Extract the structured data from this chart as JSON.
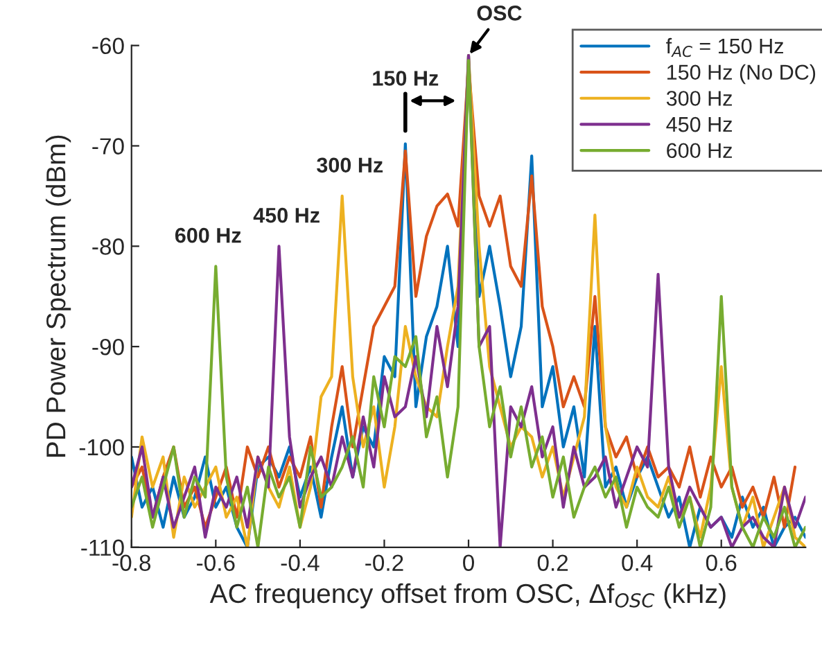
{
  "chart_data": {
    "type": "line",
    "xlabel": "AC frequency offset from OSC, Δf$_{OSC}$ (kHz)",
    "ylabel": "PD Power Spectrum (dBm)",
    "x": [
      -0.8,
      -0.775,
      -0.75,
      -0.725,
      -0.7,
      -0.675,
      -0.65,
      -0.625,
      -0.6,
      -0.575,
      -0.55,
      -0.525,
      -0.5,
      -0.475,
      -0.45,
      -0.425,
      -0.4,
      -0.375,
      -0.35,
      -0.325,
      -0.3,
      -0.275,
      -0.25,
      -0.225,
      -0.2,
      -0.175,
      -0.15,
      -0.125,
      -0.1,
      -0.075,
      -0.05,
      -0.025,
      0,
      0.025,
      0.05,
      0.075,
      0.1,
      0.125,
      0.15,
      0.175,
      0.2,
      0.225,
      0.25,
      0.275,
      0.3,
      0.325,
      0.35,
      0.375,
      0.4,
      0.425,
      0.45,
      0.475,
      0.5,
      0.525,
      0.55,
      0.575,
      0.6,
      0.625,
      0.65,
      0.675,
      0.7,
      0.725,
      0.75,
      0.775,
      0.8
    ],
    "series": [
      {
        "name": "f$_{AC}$ = 150 Hz",
        "color": "#0072bd",
        "values": [
          -101,
          -106,
          -104,
          -108,
          -103,
          -107,
          -105,
          -101,
          -106,
          -104,
          -108,
          -110,
          -102,
          -101,
          -103,
          -100,
          -105,
          -102,
          -107,
          -101,
          -96,
          -103,
          -98,
          -100,
          -91,
          -93,
          -69.8,
          -96,
          -89,
          -86,
          -80,
          -90,
          -61,
          -85,
          -80,
          -86,
          -93,
          -88,
          -71,
          -96,
          -92,
          -100,
          -96,
          -103,
          -88,
          -104,
          -102,
          -106,
          -103,
          -101,
          -104,
          -107,
          -105,
          -110,
          -106,
          -108,
          -107,
          -109,
          -105,
          -108,
          -106,
          -110,
          -108,
          -107,
          -109
        ]
      },
      {
        "name": "150 Hz (No DC)",
        "color": "#d95319",
        "values": [
          -104,
          -102,
          -107,
          -103,
          -100,
          -106,
          -104,
          -108,
          -105,
          -102,
          -107,
          -100,
          -103,
          -100,
          -104,
          -101,
          -103,
          -99,
          -106,
          -98,
          -92,
          -100,
          -94,
          -88,
          -86,
          -84,
          -70.5,
          -85,
          -79,
          -76,
          -74.8,
          -78,
          -62,
          -75,
          -78,
          -75,
          -82,
          -84,
          -73,
          -86,
          -90,
          -96,
          -93,
          -96,
          -85,
          -98,
          -101,
          -99,
          -103,
          -100,
          -103,
          -102,
          -104,
          -100,
          -105,
          -101,
          -104,
          -102,
          -106,
          -104,
          -107,
          -103,
          -108,
          -102,
          null
        ]
      },
      {
        "name": "300 Hz",
        "color": "#edb120",
        "values": [
          -107,
          -99,
          -104,
          -101,
          -109,
          -103,
          -106,
          -104,
          -102,
          -107,
          -105,
          -110,
          -101,
          -104,
          -106,
          -102,
          -108,
          -104,
          -95,
          -93,
          -75,
          -93,
          -100,
          -96,
          -104,
          -98,
          -88,
          -93,
          -96,
          -97,
          -90,
          -84,
          -61,
          -80,
          -92,
          -96,
          -100,
          -98,
          -99,
          -103,
          -100,
          -105,
          -101,
          -97,
          -76.9,
          -98,
          -104,
          -106,
          -102,
          -105,
          -106,
          -103,
          -107,
          -105,
          -109,
          -104,
          -92,
          -104,
          -108,
          -105,
          -110,
          -107,
          -104,
          -109,
          -110
        ]
      },
      {
        "name": "450 Hz",
        "color": "#7e2f8e",
        "values": [
          -104,
          -100,
          -107,
          -103,
          -108,
          -105,
          -102,
          -109,
          -104,
          -106,
          -103,
          -108,
          -101,
          -104,
          -80,
          -99,
          -106,
          -103,
          -101,
          -104,
          -99,
          -103,
          -97,
          -102,
          -93,
          -97,
          -96,
          -91,
          -97,
          -88,
          -94,
          -86,
          -61,
          -90,
          -88,
          -110,
          -96,
          -98,
          -94,
          -101,
          -98,
          -106,
          -100,
          -104,
          -103,
          -101,
          -106,
          -103,
          -100,
          -102,
          -82.8,
          -102,
          -107,
          -104,
          -106,
          -108,
          -107,
          -110,
          -108,
          -107,
          -109,
          -110,
          -104,
          -108,
          -105
        ]
      },
      {
        "name": "600 Hz",
        "color": "#77ac30",
        "values": [
          -106,
          -103,
          -108,
          -104,
          -100,
          -107,
          -103,
          -105,
          -82,
          -103,
          -108,
          -104,
          -110,
          -102,
          -105,
          -103,
          -108,
          -100,
          -105,
          -104,
          -102,
          -99,
          -104,
          -93,
          -98,
          -91,
          -92,
          -89,
          -99,
          -95,
          -103,
          -96,
          -61.5,
          -90,
          -98,
          -94,
          -101,
          -96,
          -102,
          -99,
          -105,
          -101,
          -107,
          -104,
          -102,
          -105,
          -103,
          -108,
          -104,
          -106,
          -107,
          -104,
          -108,
          -105,
          -110,
          -106,
          -85,
          -104,
          -108,
          -110,
          -107,
          -109,
          -106,
          -110,
          -108
        ]
      }
    ],
    "xlim": [
      -0.8,
      0.8
    ],
    "ylim": [
      -110,
      -60
    ],
    "xticks": [
      -0.8,
      -0.6,
      -0.4,
      -0.2,
      0,
      0.2,
      0.4,
      0.6
    ],
    "yticks": [
      -110,
      -100,
      -90,
      -80,
      -70,
      -60
    ],
    "annotations": [
      {
        "text": "OSC",
        "x": 0,
        "y": -61
      },
      {
        "text": "150 Hz",
        "x": -0.15,
        "y": -69.8
      },
      {
        "text": "300 Hz",
        "x": -0.3,
        "y": -75
      },
      {
        "text": "450 Hz",
        "x": -0.45,
        "y": -80
      },
      {
        "text": "600 Hz",
        "x": -0.6,
        "y": -82
      }
    ],
    "legend": "top right",
    "grid": false,
    "marker": "none",
    "line_style": "solid"
  }
}
